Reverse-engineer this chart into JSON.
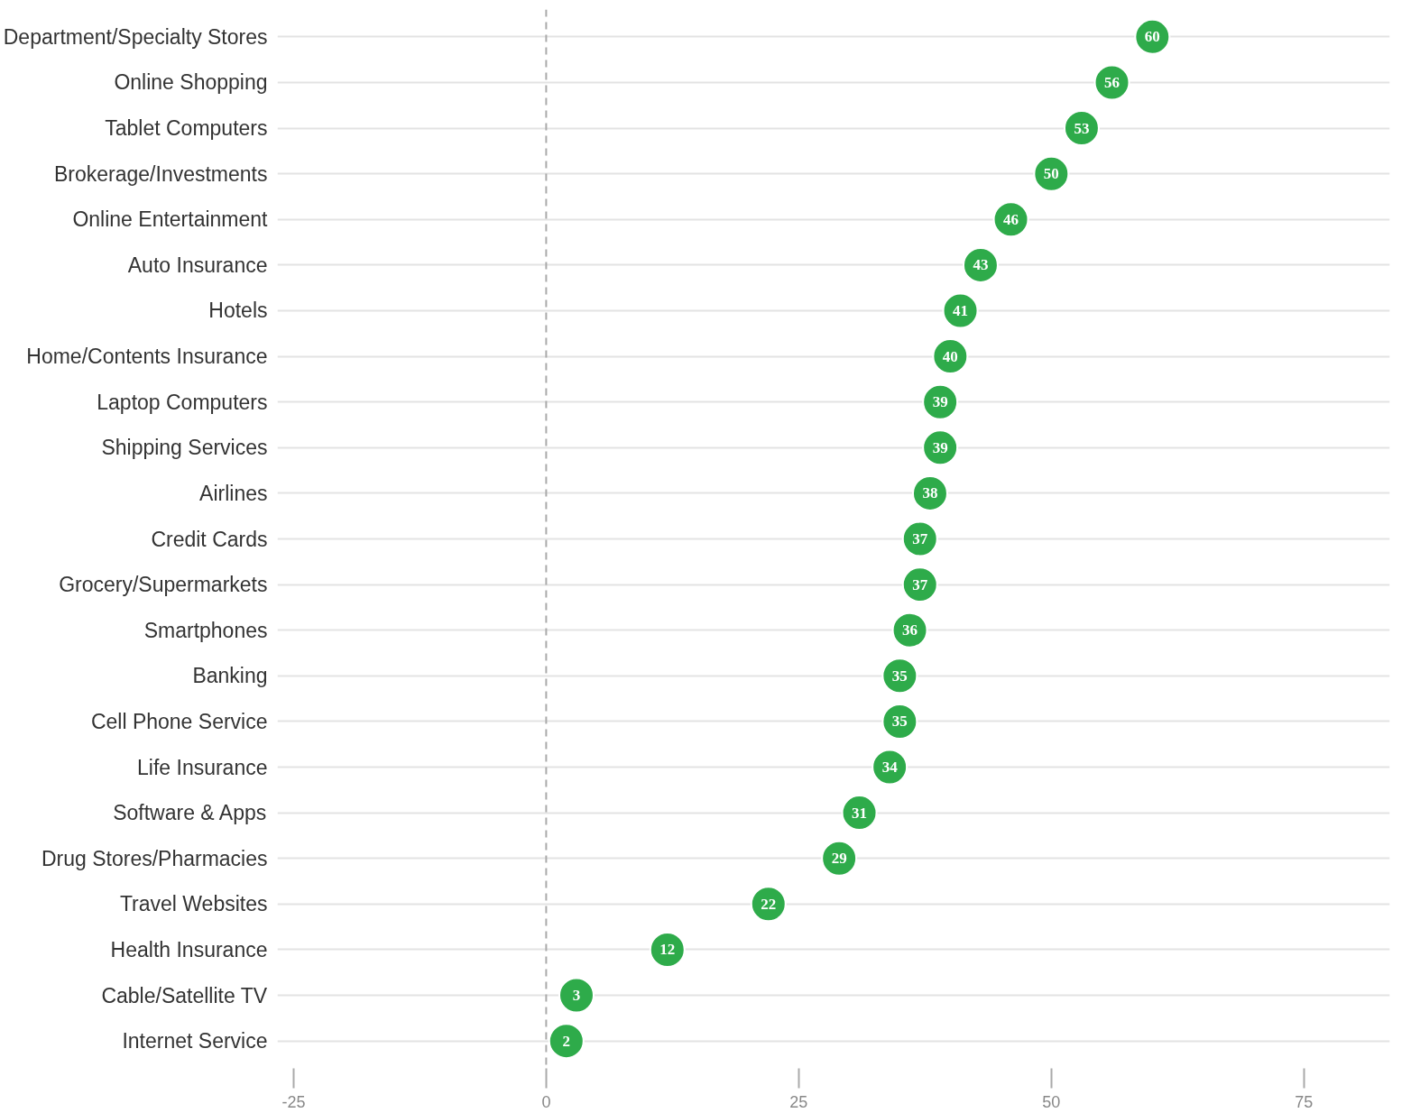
{
  "chart_data": {
    "type": "scatter",
    "orientation": "horizontal",
    "categories": [
      "Department/Specialty Stores",
      "Online Shopping",
      "Tablet Computers",
      "Brokerage/Investments",
      "Online Entertainment",
      "Auto Insurance",
      "Hotels",
      "Home/Contents Insurance",
      "Laptop Computers",
      "Shipping Services",
      "Airlines",
      "Credit Cards",
      "Grocery/Supermarkets",
      "Smartphones",
      "Banking",
      "Cell Phone Service",
      "Life Insurance",
      "Software & Apps",
      "Drug Stores/Pharmacies",
      "Travel Websites",
      "Health Insurance",
      "Cable/Satellite TV",
      "Internet Service"
    ],
    "values": [
      60,
      56,
      53,
      50,
      46,
      43,
      41,
      40,
      39,
      39,
      38,
      37,
      37,
      36,
      35,
      35,
      34,
      31,
      29,
      22,
      12,
      3,
      2
    ],
    "color": "#2eab4a",
    "marker": "circle",
    "data_labels": true,
    "xlim": [
      -26.6,
      83.5
    ],
    "xticks": [
      -25,
      0,
      25,
      50,
      75
    ],
    "grid": "y",
    "ref_lines": [
      {
        "axis": "x",
        "value": 0,
        "color": "#aaaaaa",
        "line_style": "dashed"
      }
    ]
  }
}
